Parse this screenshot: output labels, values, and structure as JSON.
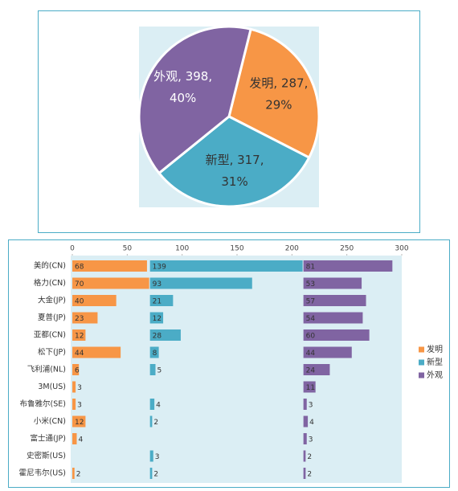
{
  "chart_data": [
    {
      "type": "pie",
      "categories": [
        "发明",
        "新型",
        "外观"
      ],
      "values": [
        287,
        317,
        398
      ],
      "colors": [
        "#f79646",
        "#4bacc6",
        "#8064a2"
      ],
      "label_colors": [
        "#333333",
        "#333333",
        "#ffffff"
      ],
      "value_labels": [
        [
          "发明, 287,",
          "29%"
        ],
        [
          "新型, 317,",
          "31%"
        ],
        [
          "外观, 398,",
          "40%"
        ]
      ]
    },
    {
      "type": "bar",
      "orientation": "horizontal",
      "categories": [
        "美的(CN)",
        "格力(CN)",
        "大金(JP)",
        "夏普(JP)",
        "亚都(CN)",
        "松下(JP)",
        "飞利浦(NL)",
        "3M(US)",
        "布鲁雅尔(SE)",
        "小米(CN)",
        "富士通(JP)",
        "史密斯(US)",
        "霍尼韦尔(US)"
      ],
      "series": [
        {
          "name": "发明",
          "color": "#f79646",
          "values": [
            68,
            70,
            40,
            23,
            12,
            44,
            6,
            3,
            3,
            12,
            4,
            null,
            2
          ]
        },
        {
          "name": "新型",
          "color": "#4bacc6",
          "values": [
            139,
            93,
            21,
            12,
            28,
            8,
            5,
            null,
            4,
            2,
            null,
            3,
            2
          ]
        },
        {
          "name": "外观",
          "color": "#8064a2",
          "values": [
            81,
            53,
            57,
            54,
            60,
            44,
            24,
            11,
            3,
            4,
            3,
            2,
            2
          ]
        }
      ],
      "xlim": [
        0,
        300
      ],
      "xticks": [
        0,
        50,
        100,
        150,
        200,
        250,
        300
      ],
      "legend": "right"
    }
  ]
}
